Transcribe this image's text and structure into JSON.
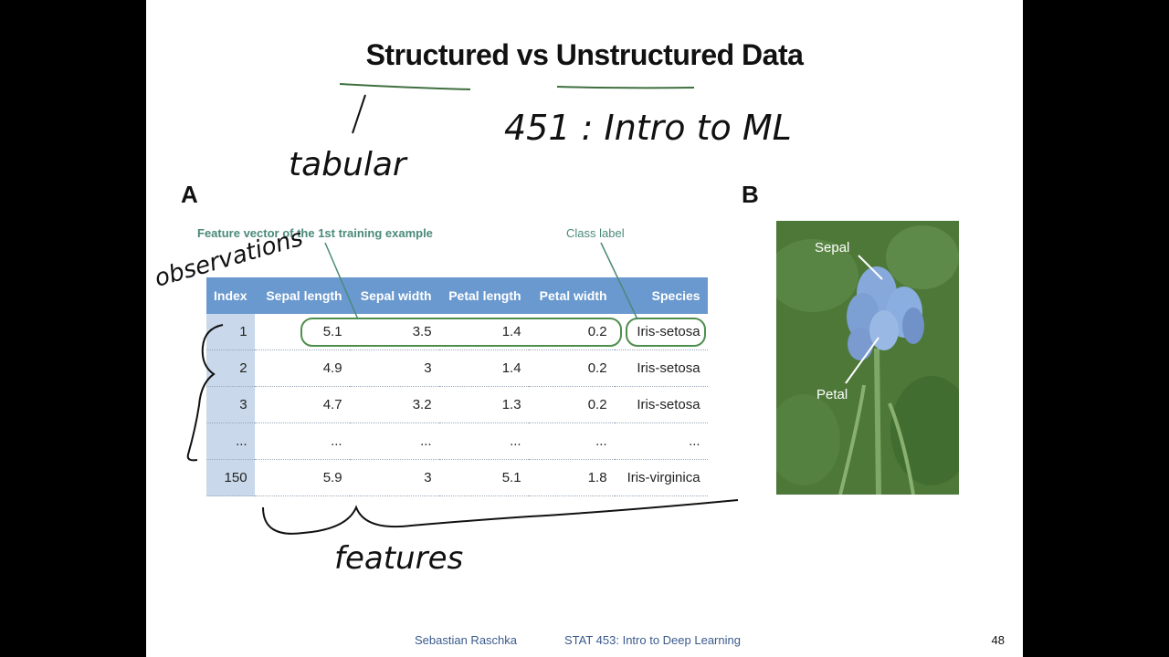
{
  "slide": {
    "title": "Structured vs Unstructured Data",
    "handwriting": {
      "tabular": "tabular",
      "course_note": "451 : Intro to ML",
      "observations": "observations",
      "features": "features"
    },
    "panel_a_label": "A",
    "panel_b_label": "B",
    "annotations": {
      "feature_vector": "Feature vector of the 1st training example",
      "class_label": "Class label"
    },
    "table": {
      "headers": [
        "Index",
        "Sepal length",
        "Sepal width",
        "Petal length",
        "Petal width",
        "Species"
      ],
      "rows": [
        [
          "1",
          "5.1",
          "3.5",
          "1.4",
          "0.2",
          "Iris-setosa"
        ],
        [
          "2",
          "4.9",
          "3",
          "1.4",
          "0.2",
          "Iris-setosa"
        ],
        [
          "3",
          "4.7",
          "3.2",
          "1.3",
          "0.2",
          "Iris-setosa"
        ],
        [
          "...",
          "...",
          "...",
          "...",
          "...",
          "..."
        ],
        [
          "150",
          "5.9",
          "3",
          "5.1",
          "1.8",
          "Iris-virginica"
        ]
      ]
    },
    "photo_labels": {
      "sepal": "Sepal",
      "petal": "Petal"
    },
    "footer": {
      "author": "Sebastian Raschka",
      "course": "STAT 453: Intro to Deep Learning",
      "page": "48"
    },
    "colors": {
      "header_blue": "#6a99cf",
      "index_blue": "#c9d8ea",
      "annotation_green": "#4a8a7a",
      "highlight_green": "#5a9a5a"
    }
  }
}
